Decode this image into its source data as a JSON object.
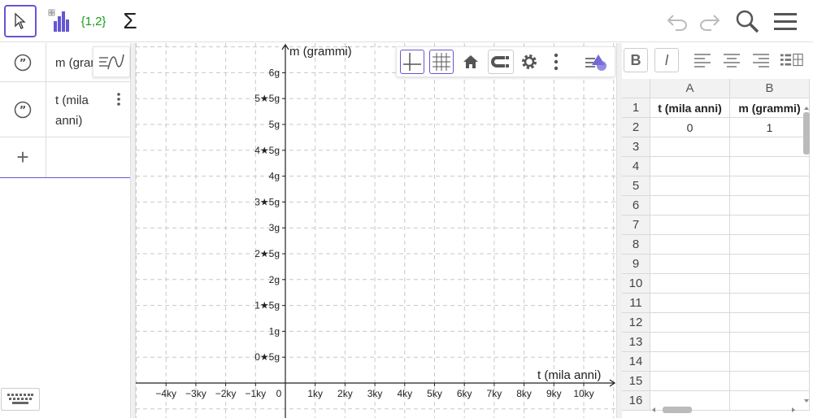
{
  "toolbar": {
    "tools": [
      "move-tool",
      "statistics-tool",
      "list-tool",
      "sum-tool"
    ],
    "list_label": "{1,2}",
    "sum_label": "Σ"
  },
  "algebra": {
    "rows": [
      {
        "text": "m (grammi)"
      },
      {
        "text_line1": "t (mila",
        "text_line2": "anni)"
      }
    ],
    "add_label": "+"
  },
  "graphics": {
    "y_axis_label": "m (grammi)",
    "x_axis_label": "t (mila anni)",
    "x_ticks": [
      "−4ky",
      "−3ky",
      "−2ky",
      "−1ky",
      "0",
      "1ky",
      "2ky",
      "3ky",
      "4ky",
      "5ky",
      "6ky",
      "7ky",
      "8ky",
      "9ky",
      "10ky"
    ],
    "y_ticks": [
      "6g",
      "5★5g",
      "5g",
      "4★5g",
      "4g",
      "3★5g",
      "3g",
      "2★5g",
      "2g",
      "1★5g",
      "1g",
      "0★5g"
    ],
    "toolbar_icons": [
      "axes-icon",
      "grid-icon",
      "home-icon",
      "magnet-icon",
      "gear-icon",
      "more-icon",
      "style-bar-icon"
    ]
  },
  "spreadsheet": {
    "columns": [
      "A",
      "B"
    ],
    "rows": [
      {
        "num": "1",
        "a": "t (mila anni)",
        "b": "m (grammi)",
        "bold": true
      },
      {
        "num": "2",
        "a": "0",
        "b": "1",
        "bold": false
      },
      {
        "num": "3",
        "a": "",
        "b": ""
      },
      {
        "num": "4",
        "a": "",
        "b": ""
      },
      {
        "num": "5",
        "a": "",
        "b": ""
      },
      {
        "num": "6",
        "a": "",
        "b": ""
      },
      {
        "num": "7",
        "a": "",
        "b": ""
      },
      {
        "num": "8",
        "a": "",
        "b": ""
      },
      {
        "num": "9",
        "a": "",
        "b": ""
      },
      {
        "num": "10",
        "a": "",
        "b": ""
      },
      {
        "num": "11",
        "a": "",
        "b": ""
      },
      {
        "num": "12",
        "a": "",
        "b": ""
      },
      {
        "num": "13",
        "a": "",
        "b": ""
      },
      {
        "num": "14",
        "a": "",
        "b": ""
      },
      {
        "num": "15",
        "a": "",
        "b": ""
      },
      {
        "num": "16",
        "a": "",
        "b": ""
      }
    ],
    "bold_label": "B",
    "italic_label": "I"
  },
  "colors": {
    "accent": "#6557d2",
    "chart_bar": "#6557d2"
  }
}
